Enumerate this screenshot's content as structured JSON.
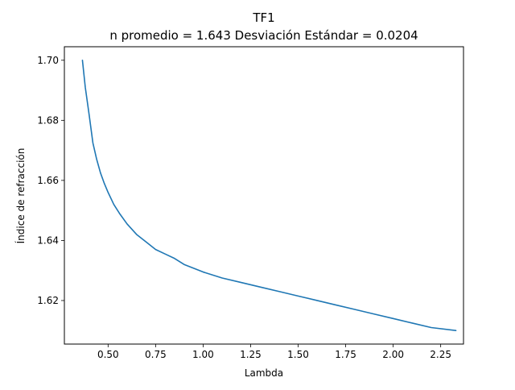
{
  "chart_data": {
    "type": "line",
    "title": "TF1",
    "subtitle": "n promedio = 1.643  Desviación Estándar = 0.0204",
    "xlabel": "Lambda",
    "ylabel": "Índice de refracción",
    "xlim": [
      0.27,
      2.37
    ],
    "ylim": [
      1.6055,
      1.7045
    ],
    "xticks": [
      0.5,
      0.75,
      1.0,
      1.25,
      1.5,
      1.75,
      2.0,
      2.25
    ],
    "xtick_labels": [
      "0.50",
      "0.75",
      "1.00",
      "1.25",
      "1.50",
      "1.75",
      "2.00",
      "2.25"
    ],
    "yticks": [
      1.62,
      1.64,
      1.66,
      1.68,
      1.7
    ],
    "ytick_labels": [
      "1.62",
      "1.64",
      "1.66",
      "1.68",
      "1.70"
    ],
    "grid": false,
    "series": [
      {
        "color": "#1f77b4",
        "x": [
          0.365,
          0.38,
          0.4,
          0.42,
          0.44,
          0.46,
          0.48,
          0.5,
          0.53,
          0.56,
          0.6,
          0.65,
          0.7,
          0.75,
          0.8,
          0.85,
          0.9,
          1.0,
          1.1,
          1.2,
          1.3,
          1.4,
          1.5,
          1.6,
          1.7,
          1.8,
          1.9,
          2.0,
          2.1,
          2.2,
          2.33
        ],
        "y": [
          1.7,
          1.691,
          1.682,
          1.6725,
          1.667,
          1.6625,
          1.659,
          1.656,
          1.652,
          1.649,
          1.6455,
          1.642,
          1.6395,
          1.637,
          1.6355,
          1.634,
          1.632,
          1.6295,
          1.6275,
          1.626,
          1.6245,
          1.623,
          1.6215,
          1.62,
          1.6185,
          1.617,
          1.6155,
          1.614,
          1.6125,
          1.611,
          1.61
        ]
      }
    ]
  }
}
